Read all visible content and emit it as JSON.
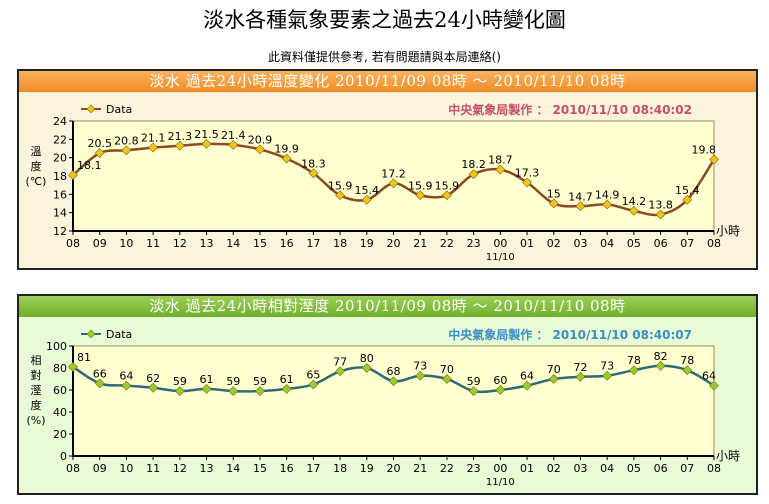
{
  "page": {
    "title": "淡水各種氣象要素之過去24小時變化圖",
    "note": "此資料僅提供參考, 若有問題請與本局連絡()"
  },
  "chart_data": [
    {
      "type": "line",
      "title": "淡水  過去24小時溫度變化  2010/11/09  08時  ～  2010/11/10  08時",
      "credit": "中央氣象局製作 ： 2010/11/10  08:40:02",
      "legend": "Data",
      "ylabel": [
        "溫",
        "度",
        "(℃)"
      ],
      "xlabel": "小時",
      "date_label": "11/10",
      "categories": [
        "08",
        "09",
        "10",
        "11",
        "12",
        "13",
        "14",
        "15",
        "16",
        "17",
        "18",
        "19",
        "20",
        "21",
        "22",
        "23",
        "00",
        "01",
        "02",
        "03",
        "04",
        "05",
        "06",
        "07",
        "08"
      ],
      "values": [
        18.1,
        20.5,
        20.8,
        21.1,
        21.3,
        21.5,
        21.4,
        20.9,
        19.9,
        18.3,
        15.9,
        15.4,
        17.2,
        15.9,
        15.9,
        18.2,
        18.7,
        17.3,
        15,
        14.7,
        14.9,
        14.2,
        13.8,
        15.4,
        19.8
      ],
      "ylim": [
        12,
        24
      ],
      "yticks": [
        12,
        14,
        16,
        18,
        20,
        22,
        24
      ],
      "colors": {
        "line": "#8b4a22",
        "marker": "#f2c318",
        "credit": "#c8506a"
      }
    },
    {
      "type": "line",
      "title": "淡水  過去24小時相對溼度  2010/11/09  08時  ～  2010/11/10  08時",
      "credit": "中央氣象局製作 ： 2010/11/10  08:40:07",
      "legend": "Data",
      "ylabel": [
        "相",
        "對",
        "溼",
        "度",
        "(%)"
      ],
      "xlabel": "小時",
      "date_label": "11/10",
      "categories": [
        "08",
        "09",
        "10",
        "11",
        "12",
        "13",
        "14",
        "15",
        "16",
        "17",
        "18",
        "19",
        "20",
        "21",
        "22",
        "23",
        "00",
        "01",
        "02",
        "03",
        "04",
        "05",
        "06",
        "07",
        "08"
      ],
      "values": [
        81,
        66,
        64,
        62,
        59,
        61,
        59,
        59,
        61,
        65,
        77,
        80,
        68,
        73,
        70,
        59,
        60,
        64,
        70,
        72,
        73,
        78,
        82,
        78,
        64
      ],
      "ylim": [
        0,
        100
      ],
      "yticks": [
        0,
        20,
        40,
        60,
        80,
        100
      ],
      "colors": {
        "line": "#2e6b78",
        "marker": "#9ccc2c",
        "credit": "#3a8fc8"
      }
    }
  ]
}
